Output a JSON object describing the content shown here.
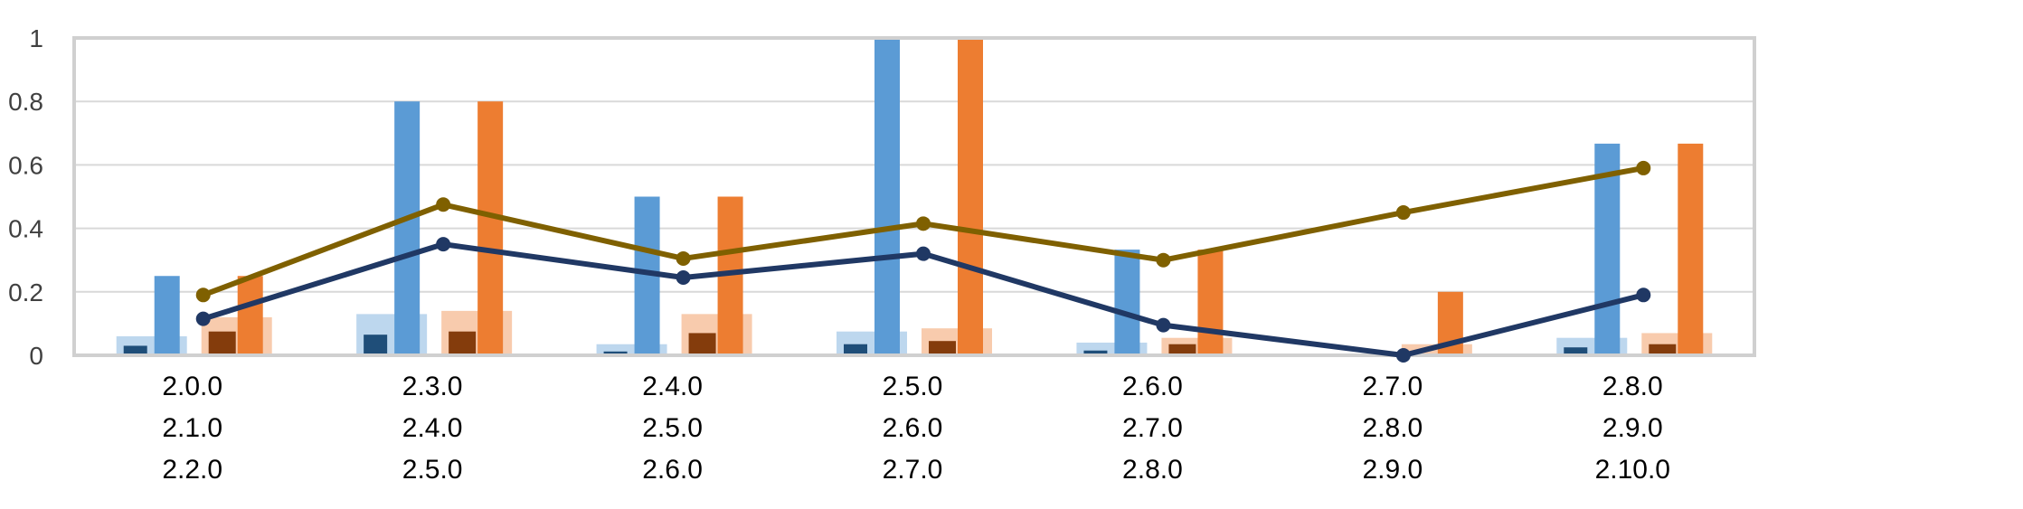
{
  "chart_data": {
    "type": "bar",
    "title": "",
    "xlabel": "",
    "ylabel": "",
    "ylim": [
      0,
      1
    ],
    "yticks": [
      "0",
      "0.2",
      "0.4",
      "0.6",
      "0.8",
      "1"
    ],
    "grid": true,
    "legend": "none",
    "categories": [
      [
        "2.0.0",
        "2.1.0",
        "2.2.0"
      ],
      [
        "2.3.0",
        "2.4.0",
        "2.5.0"
      ],
      [
        "2.4.0",
        "2.5.0",
        "2.6.0"
      ],
      [
        "2.5.0",
        "2.6.0",
        "2.7.0"
      ],
      [
        "2.6.0",
        "2.7.0",
        "2.8.0"
      ],
      [
        "2.7.0",
        "2.8.0",
        "2.9.0"
      ],
      [
        "2.8.0",
        "2.9.0",
        "2.10.0"
      ]
    ],
    "bar_series": [
      {
        "group": "blue",
        "role": "wide-background",
        "color": "#bdd7ee",
        "values": [
          0.06,
          0.13,
          0.035,
          0.075,
          0.04,
          0.0,
          0.055
        ]
      },
      {
        "group": "blue",
        "role": "narrow",
        "color": "#1f4e79",
        "values": [
          0.03,
          0.065,
          0.012,
          0.035,
          0.015,
          0.0,
          0.025
        ]
      },
      {
        "group": "blue",
        "role": "tall",
        "color": "#5b9bd5",
        "values": [
          0.25,
          0.8,
          0.5,
          1.0,
          0.333,
          0.0,
          0.667
        ]
      },
      {
        "group": "orange",
        "role": "wide-background",
        "color": "#f8cbad",
        "values": [
          0.12,
          0.14,
          0.13,
          0.085,
          0.055,
          0.035,
          0.07
        ]
      },
      {
        "group": "orange",
        "role": "narrow",
        "color": "#843c0c",
        "values": [
          0.075,
          0.075,
          0.07,
          0.045,
          0.035,
          0.0,
          0.035
        ]
      },
      {
        "group": "orange",
        "role": "tall",
        "color": "#ed7d31",
        "values": [
          0.25,
          0.8,
          0.5,
          1.0,
          0.333,
          0.2,
          0.667
        ]
      }
    ],
    "line_series": [
      {
        "color": "#7f6000",
        "values": [
          0.19,
          0.475,
          0.305,
          0.415,
          0.3,
          0.45,
          0.59
        ]
      },
      {
        "color": "#203864",
        "values": [
          0.115,
          0.35,
          0.245,
          0.32,
          0.095,
          0.0,
          0.19
        ]
      }
    ]
  }
}
